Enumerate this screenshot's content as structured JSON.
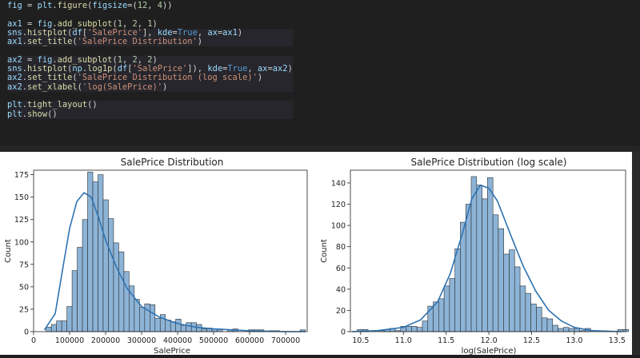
{
  "code": {
    "lines": [
      "fig = plt.figure(figsize=(12, 4))",
      "ax1 = fig.add_subplot(1, 2, 1)",
      "sns.histplot(df['SalePrice'], kde=True, ax=ax1)",
      "ax1.set_title('SalePrice Distribution')",
      "ax2 = fig.add_subplot(1, 2, 2)",
      "sns.histplot(np.log1p(df['SalePrice']), kde=True, ax=ax2)",
      "ax2.set_title('SalePrice Distribution (log scale)')",
      "ax2.set_xlabel('log(SalePrice)')",
      "plt.tight_layout()",
      "plt.show()"
    ]
  },
  "colors": {
    "bar_fill": "#8db4d6",
    "bar_edge": "#2b2f36",
    "kde_line": "#2f73b2",
    "code_bg": "#1f1f1f"
  },
  "chart_data": [
    {
      "type": "bar",
      "title": "SalePrice Distribution",
      "xlabel": "SalePrice",
      "ylabel": "Count",
      "xlim": [
        0,
        760000
      ],
      "ylim": [
        0,
        180
      ],
      "xticks": [
        0,
        100000,
        200000,
        300000,
        400000,
        500000,
        600000,
        700000
      ],
      "yticks": [
        0,
        25,
        50,
        75,
        100,
        125,
        150,
        175
      ],
      "bins_start": 34900,
      "bin_width": 14400,
      "counts": [
        5,
        8,
        12,
        12,
        28,
        68,
        94,
        125,
        178,
        167,
        175,
        147,
        126,
        99,
        89,
        67,
        51,
        36,
        27,
        31,
        30,
        15,
        19,
        13,
        11,
        14,
        7,
        10,
        10,
        8,
        3,
        4,
        3,
        3,
        0,
        2,
        3,
        0,
        0,
        2,
        2,
        2,
        0,
        1,
        1,
        0,
        0,
        0,
        0,
        2
      ],
      "kde": [
        [
          30000,
          2
        ],
        [
          60000,
          20
        ],
        [
          80000,
          68
        ],
        [
          100000,
          115
        ],
        [
          120000,
          145
        ],
        [
          140000,
          155
        ],
        [
          160000,
          150
        ],
        [
          180000,
          128
        ],
        [
          200000,
          102
        ],
        [
          230000,
          72
        ],
        [
          260000,
          48
        ],
        [
          300000,
          28
        ],
        [
          350000,
          16
        ],
        [
          400000,
          9
        ],
        [
          450000,
          5
        ],
        [
          500000,
          3
        ],
        [
          600000,
          1
        ],
        [
          700000,
          0
        ],
        [
          755000,
          0
        ]
      ]
    },
    {
      "type": "bar",
      "title": "SalePrice Distribution (log scale)",
      "xlabel": "log(SalePrice)",
      "ylabel": "Count",
      "xlim": [
        10.38,
        13.6
      ],
      "ylim": [
        0,
        152
      ],
      "xticks": [
        10.5,
        11.0,
        11.5,
        12.0,
        12.5,
        13.0,
        13.5
      ],
      "xtick_labels": [
        "10.5",
        "11.0",
        "11.5",
        "12.0",
        "12.5",
        "13.0",
        "13.5"
      ],
      "yticks": [
        0,
        20,
        40,
        60,
        80,
        100,
        120,
        140
      ],
      "bins_start": 10.46,
      "bin_width": 0.0635,
      "counts": [
        2,
        2,
        0,
        0,
        1,
        2,
        3,
        1,
        5,
        5,
        5,
        4,
        10,
        24,
        28,
        31,
        43,
        50,
        78,
        103,
        120,
        146,
        138,
        125,
        145,
        110,
        97,
        73,
        77,
        61,
        43,
        36,
        26,
        23,
        13,
        12,
        6,
        3,
        4,
        3,
        3,
        1,
        3,
        0,
        0,
        0,
        0,
        0,
        2,
        2
      ],
      "kde": [
        [
          10.4,
          0
        ],
        [
          10.7,
          1
        ],
        [
          11.0,
          4
        ],
        [
          11.2,
          11
        ],
        [
          11.4,
          28
        ],
        [
          11.55,
          55
        ],
        [
          11.7,
          95
        ],
        [
          11.8,
          125
        ],
        [
          11.9,
          138
        ],
        [
          12.0,
          135
        ],
        [
          12.1,
          123
        ],
        [
          12.25,
          92
        ],
        [
          12.4,
          62
        ],
        [
          12.55,
          38
        ],
        [
          12.7,
          20
        ],
        [
          12.85,
          10
        ],
        [
          13.0,
          4
        ],
        [
          13.2,
          1
        ],
        [
          13.55,
          0
        ]
      ]
    }
  ]
}
